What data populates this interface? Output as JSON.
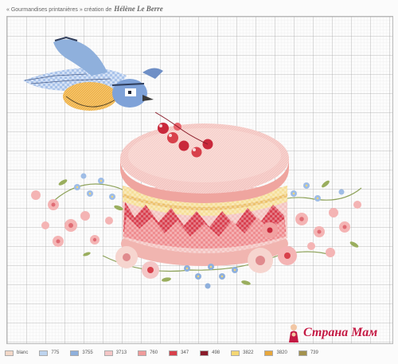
{
  "header": {
    "prefix": "« Gourmandises printanières » création de",
    "author": "Hélène Le Berre"
  },
  "legend": [
    {
      "code": "blanc",
      "color": "#f3d8c8"
    },
    {
      "code": "775",
      "color": "#bdd3ee"
    },
    {
      "code": "3755",
      "color": "#8fb0dc"
    },
    {
      "code": "3713",
      "color": "#f4c6c6"
    },
    {
      "code": "760",
      "color": "#ef9b9b"
    },
    {
      "code": "347",
      "color": "#d8404b"
    },
    {
      "code": "498",
      "color": "#8a1c2a"
    },
    {
      "code": "3822",
      "color": "#f5d774"
    },
    {
      "code": "3820",
      "color": "#e8a73c"
    },
    {
      "code": "739",
      "color": "#a3924e"
    }
  ],
  "watermark": {
    "text": "Страна Мам",
    "logo": "stranamam-logo"
  }
}
